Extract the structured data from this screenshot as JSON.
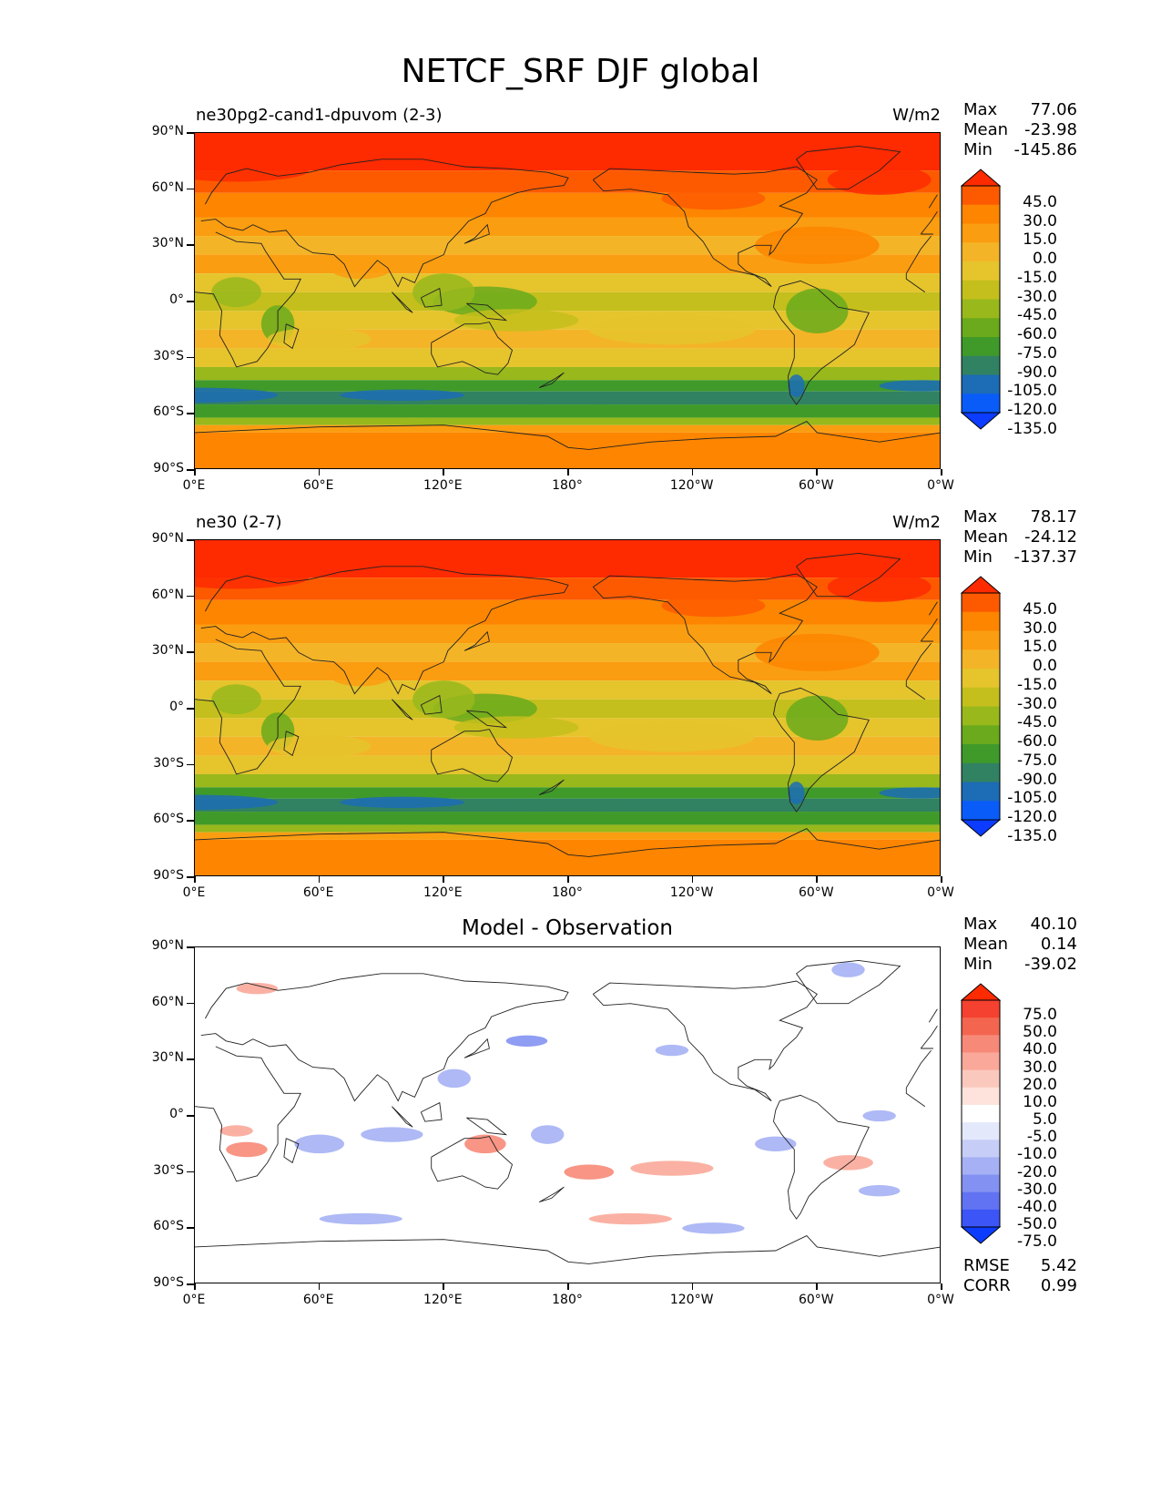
{
  "figure": {
    "title": "NETCF_SRF DJF global"
  },
  "axes": {
    "lat_ticks": [
      "90°N",
      "60°N",
      "30°N",
      "0°",
      "30°S",
      "60°S",
      "90°S"
    ],
    "lon_ticks": [
      "0°E",
      "60°E",
      "120°E",
      "180°",
      "120°W",
      "60°W",
      "0°W"
    ]
  },
  "panels": [
    {
      "title": "ne30pg2-cand1-dpuvom (2-3)",
      "units": "W/m2",
      "stats": [
        {
          "label": "Max",
          "value": "77.06"
        },
        {
          "label": "Mean",
          "value": "-23.98"
        },
        {
          "label": "Min",
          "value": "-145.86"
        }
      ],
      "colorbar": {
        "labels": [
          "45.0",
          "30.0",
          "15.0",
          "0.0",
          "-15.0",
          "-30.0",
          "-45.0",
          "-60.0",
          "-75.0",
          "-90.0",
          "-105.0",
          "-120.0",
          "-135.0"
        ],
        "colors": [
          "#fe2a00",
          "#fd5a00",
          "#fd8500",
          "#fb9d11",
          "#f4b427",
          "#e5c42c",
          "#c4bf1c",
          "#98b81c",
          "#6aaa1c",
          "#3f9a2a",
          "#318262",
          "#1c6cb6",
          "#0a5cf8",
          "#0b3cff"
        ]
      }
    },
    {
      "title": "ne30 (2-7)",
      "units": "W/m2",
      "stats": [
        {
          "label": "Max",
          "value": "78.17"
        },
        {
          "label": "Mean",
          "value": "-24.12"
        },
        {
          "label": "Min",
          "value": "-137.37"
        }
      ],
      "colorbar": {
        "labels": [
          "45.0",
          "30.0",
          "15.0",
          "0.0",
          "-15.0",
          "-30.0",
          "-45.0",
          "-60.0",
          "-75.0",
          "-90.0",
          "-105.0",
          "-120.0",
          "-135.0"
        ],
        "colors": [
          "#fe2a00",
          "#fd5a00",
          "#fd8500",
          "#fb9d11",
          "#f4b427",
          "#e5c42c",
          "#c4bf1c",
          "#98b81c",
          "#6aaa1c",
          "#3f9a2a",
          "#318262",
          "#1c6cb6",
          "#0a5cf8",
          "#0b3cff"
        ]
      }
    },
    {
      "title": "Model - Observation",
      "units": "",
      "stats": [
        {
          "label": "Max",
          "value": "40.10"
        },
        {
          "label": "Mean",
          "value": "0.14"
        },
        {
          "label": "Min",
          "value": "-39.02"
        }
      ],
      "extra_stats": [
        {
          "label": "RMSE",
          "value": "5.42"
        },
        {
          "label": "CORR",
          "value": "0.99"
        }
      ],
      "colorbar": {
        "labels": [
          "75.0",
          "50.0",
          "40.0",
          "30.0",
          "20.0",
          "10.0",
          "5.0",
          "-5.0",
          "-10.0",
          "-20.0",
          "-30.0",
          "-40.0",
          "-50.0",
          "-75.0"
        ],
        "colors": [
          "#fe2a00",
          "#f5412f",
          "#f4654f",
          "#f78978",
          "#f9a899",
          "#fbc8bd",
          "#fde3dc",
          "#ffffff",
          "#e4e8fb",
          "#c6cef7",
          "#a5b1f4",
          "#8392f2",
          "#6173f2",
          "#3c55f6",
          "#0b3cff"
        ]
      }
    }
  ]
}
